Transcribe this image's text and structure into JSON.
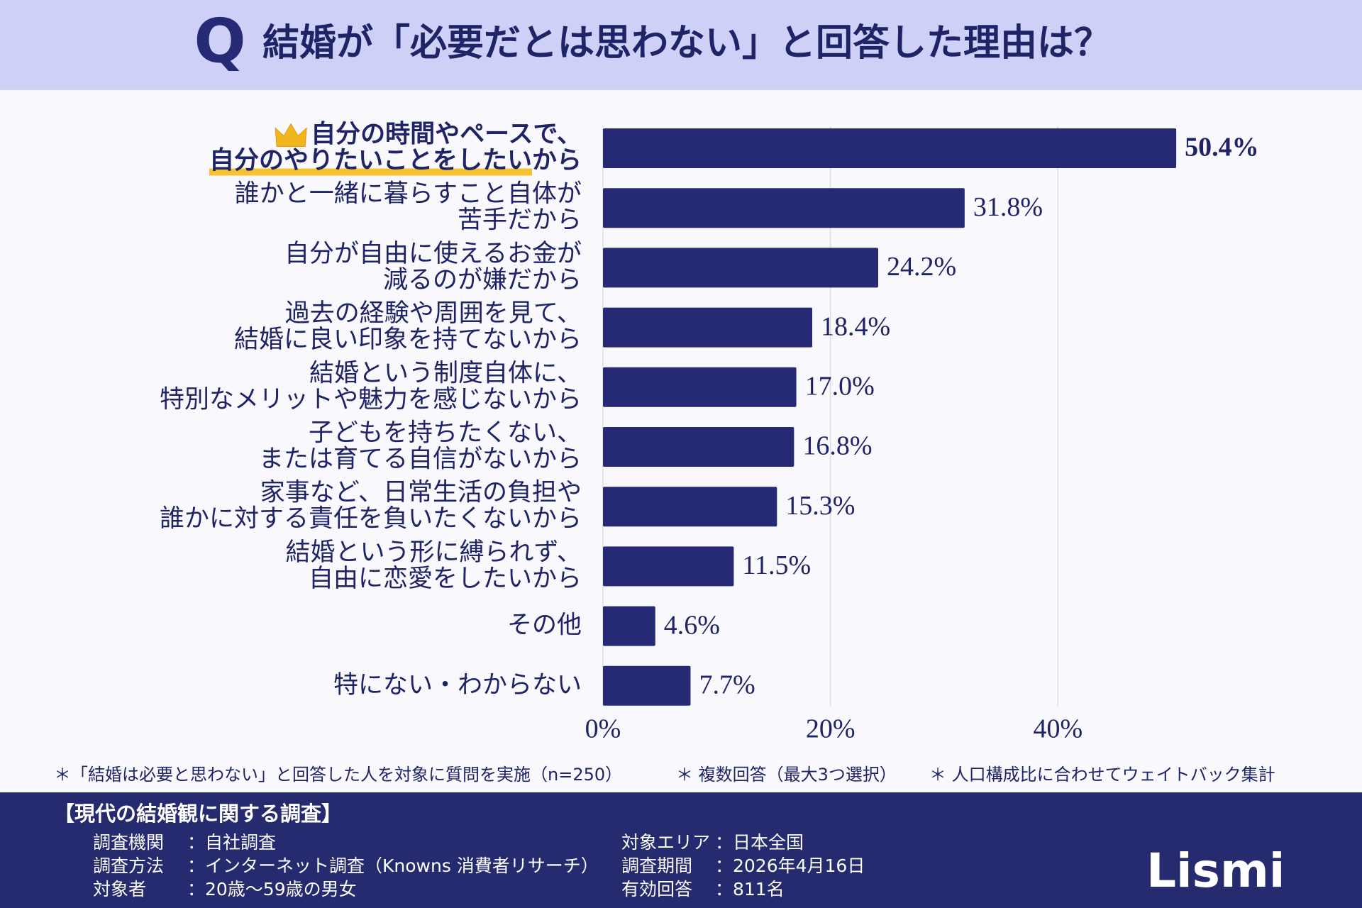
{
  "chart_data": {
    "type": "bar",
    "orientation": "horizontal",
    "badge": "Q",
    "title": "結婚が「必要だとは思わない」と回答した理由は？",
    "categories": [
      [
        "自分の時間やペースで、",
        "自分のやりたいことをしたいから"
      ],
      [
        "誰かと一緒に暮らすこと自体が",
        "苦手だから"
      ],
      [
        "自分が自由に使えるお金が",
        "減るのが嫌だから"
      ],
      [
        "過去の経験や周囲を見て、",
        "結婚に良い印象を持てないから"
      ],
      [
        "結婚という制度自体に、",
        "特別なメリットや魅力を感じないから"
      ],
      [
        "子どもを持ちたくない、",
        "または育てる自信がないから"
      ],
      [
        "家事など、日常生活の負担や",
        "誰かに対する責任を負いたくないから"
      ],
      [
        "結婚という形に縛られず、",
        "自由に恋愛をしたいから"
      ],
      [
        "その他"
      ],
      [
        "特にない・わからない"
      ]
    ],
    "values": [
      50.4,
      31.8,
      24.2,
      18.4,
      17.0,
      16.8,
      15.3,
      11.5,
      4.6,
      7.7
    ],
    "value_labels": [
      "50.4%",
      "31.8%",
      "24.2%",
      "18.4%",
      "17.0%",
      "16.8%",
      "15.3%",
      "11.5%",
      "4.6%",
      "7.7%"
    ],
    "color": "#262a75",
    "xlim": [
      0,
      60
    ],
    "xticks": [
      {
        "value": 0,
        "label": "0%"
      },
      {
        "value": 20,
        "label": "20%"
      },
      {
        "value": 40,
        "label": "40%"
      }
    ],
    "grid": true,
    "notes": [
      "＊「結婚は必要と思わない」と回答した人を対象に質問を実施（n=250）",
      "＊ 複数回答（最大3つ選択）",
      "＊ 人口構成比に合わせてウェイトバック集計"
    ]
  },
  "survey": {
    "title": "【現代の結婚観に関する調査】",
    "items": [
      {
        "label": "調査機関",
        "value": "：自社調査"
      },
      {
        "label": "調査方法",
        "value": "：インターネット調査（Knowns 消費者リサーチ）"
      },
      {
        "label": "対象者",
        "value": "：20歳〜59歳の男女"
      },
      {
        "label": "対象エリア",
        "value": "：日本全国"
      },
      {
        "label": "調査期間",
        "value": "：2026年4月16日"
      },
      {
        "label": "有効回答",
        "value": "：811名"
      }
    ],
    "logo": "Lismi"
  }
}
